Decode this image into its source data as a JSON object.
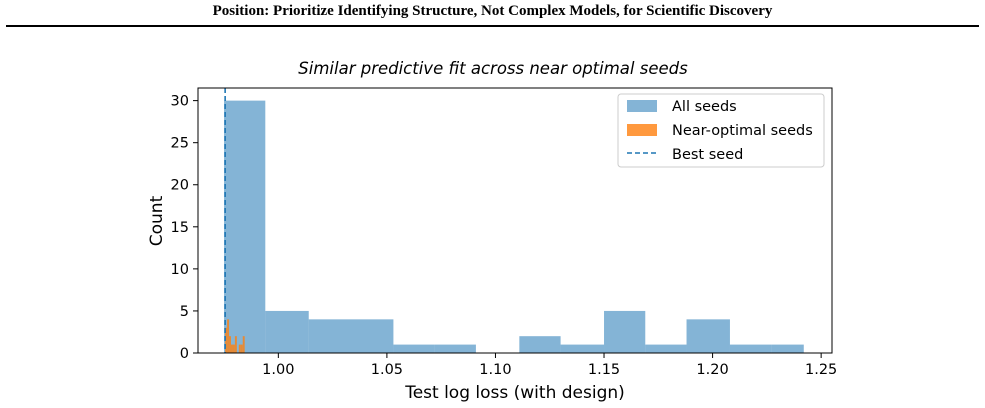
{
  "page": {
    "header": "Position: Prioritize Identifying Structure, Not Complex Models, for Scientific Discovery"
  },
  "chart_data": {
    "type": "histogram",
    "title": "Similar predictive fit across near optimal seeds",
    "xlabel": "Test log loss (with design)",
    "ylabel": "Count",
    "xlim": [
      0.963,
      1.255
    ],
    "ylim": [
      0,
      31.5
    ],
    "xticks": [
      1.0,
      1.05,
      1.1,
      1.15,
      1.2,
      1.25
    ],
    "xtick_labels": [
      "1.00",
      "1.05",
      "1.10",
      "1.15",
      "1.20",
      "1.25"
    ],
    "yticks": [
      0,
      5,
      10,
      15,
      20,
      25,
      30
    ],
    "ytick_labels": [
      "0",
      "5",
      "10",
      "15",
      "20",
      "25",
      "30"
    ],
    "grid": false,
    "legend_position": "top-right",
    "series": [
      {
        "name": "All seeds",
        "color": "#1f77b4",
        "alpha": 0.55,
        "bin_edges": [
          0.975,
          0.994,
          1.014,
          1.033,
          1.053,
          1.072,
          1.091,
          1.111,
          1.13,
          1.15,
          1.169,
          1.188,
          1.208,
          1.227,
          1.242
        ],
        "counts": [
          30,
          5,
          4,
          4,
          1,
          1,
          0,
          2,
          1,
          5,
          1,
          4,
          1,
          1
        ]
      },
      {
        "name": "Near-optimal seeds",
        "color": "#ff7f0e",
        "alpha": 0.8,
        "bin_edges": [
          0.9755,
          0.9764,
          0.9773,
          0.9782,
          0.9791,
          0.98,
          0.9809,
          0.9818,
          0.9827,
          0.9836,
          0.9845
        ],
        "counts": [
          3,
          4,
          2,
          1,
          1,
          2,
          0,
          1,
          1,
          2
        ]
      }
    ],
    "reference_lines": [
      {
        "name": "Best seed",
        "x": 0.9755,
        "color": "#1f77b4",
        "style": "dashed"
      }
    ]
  }
}
